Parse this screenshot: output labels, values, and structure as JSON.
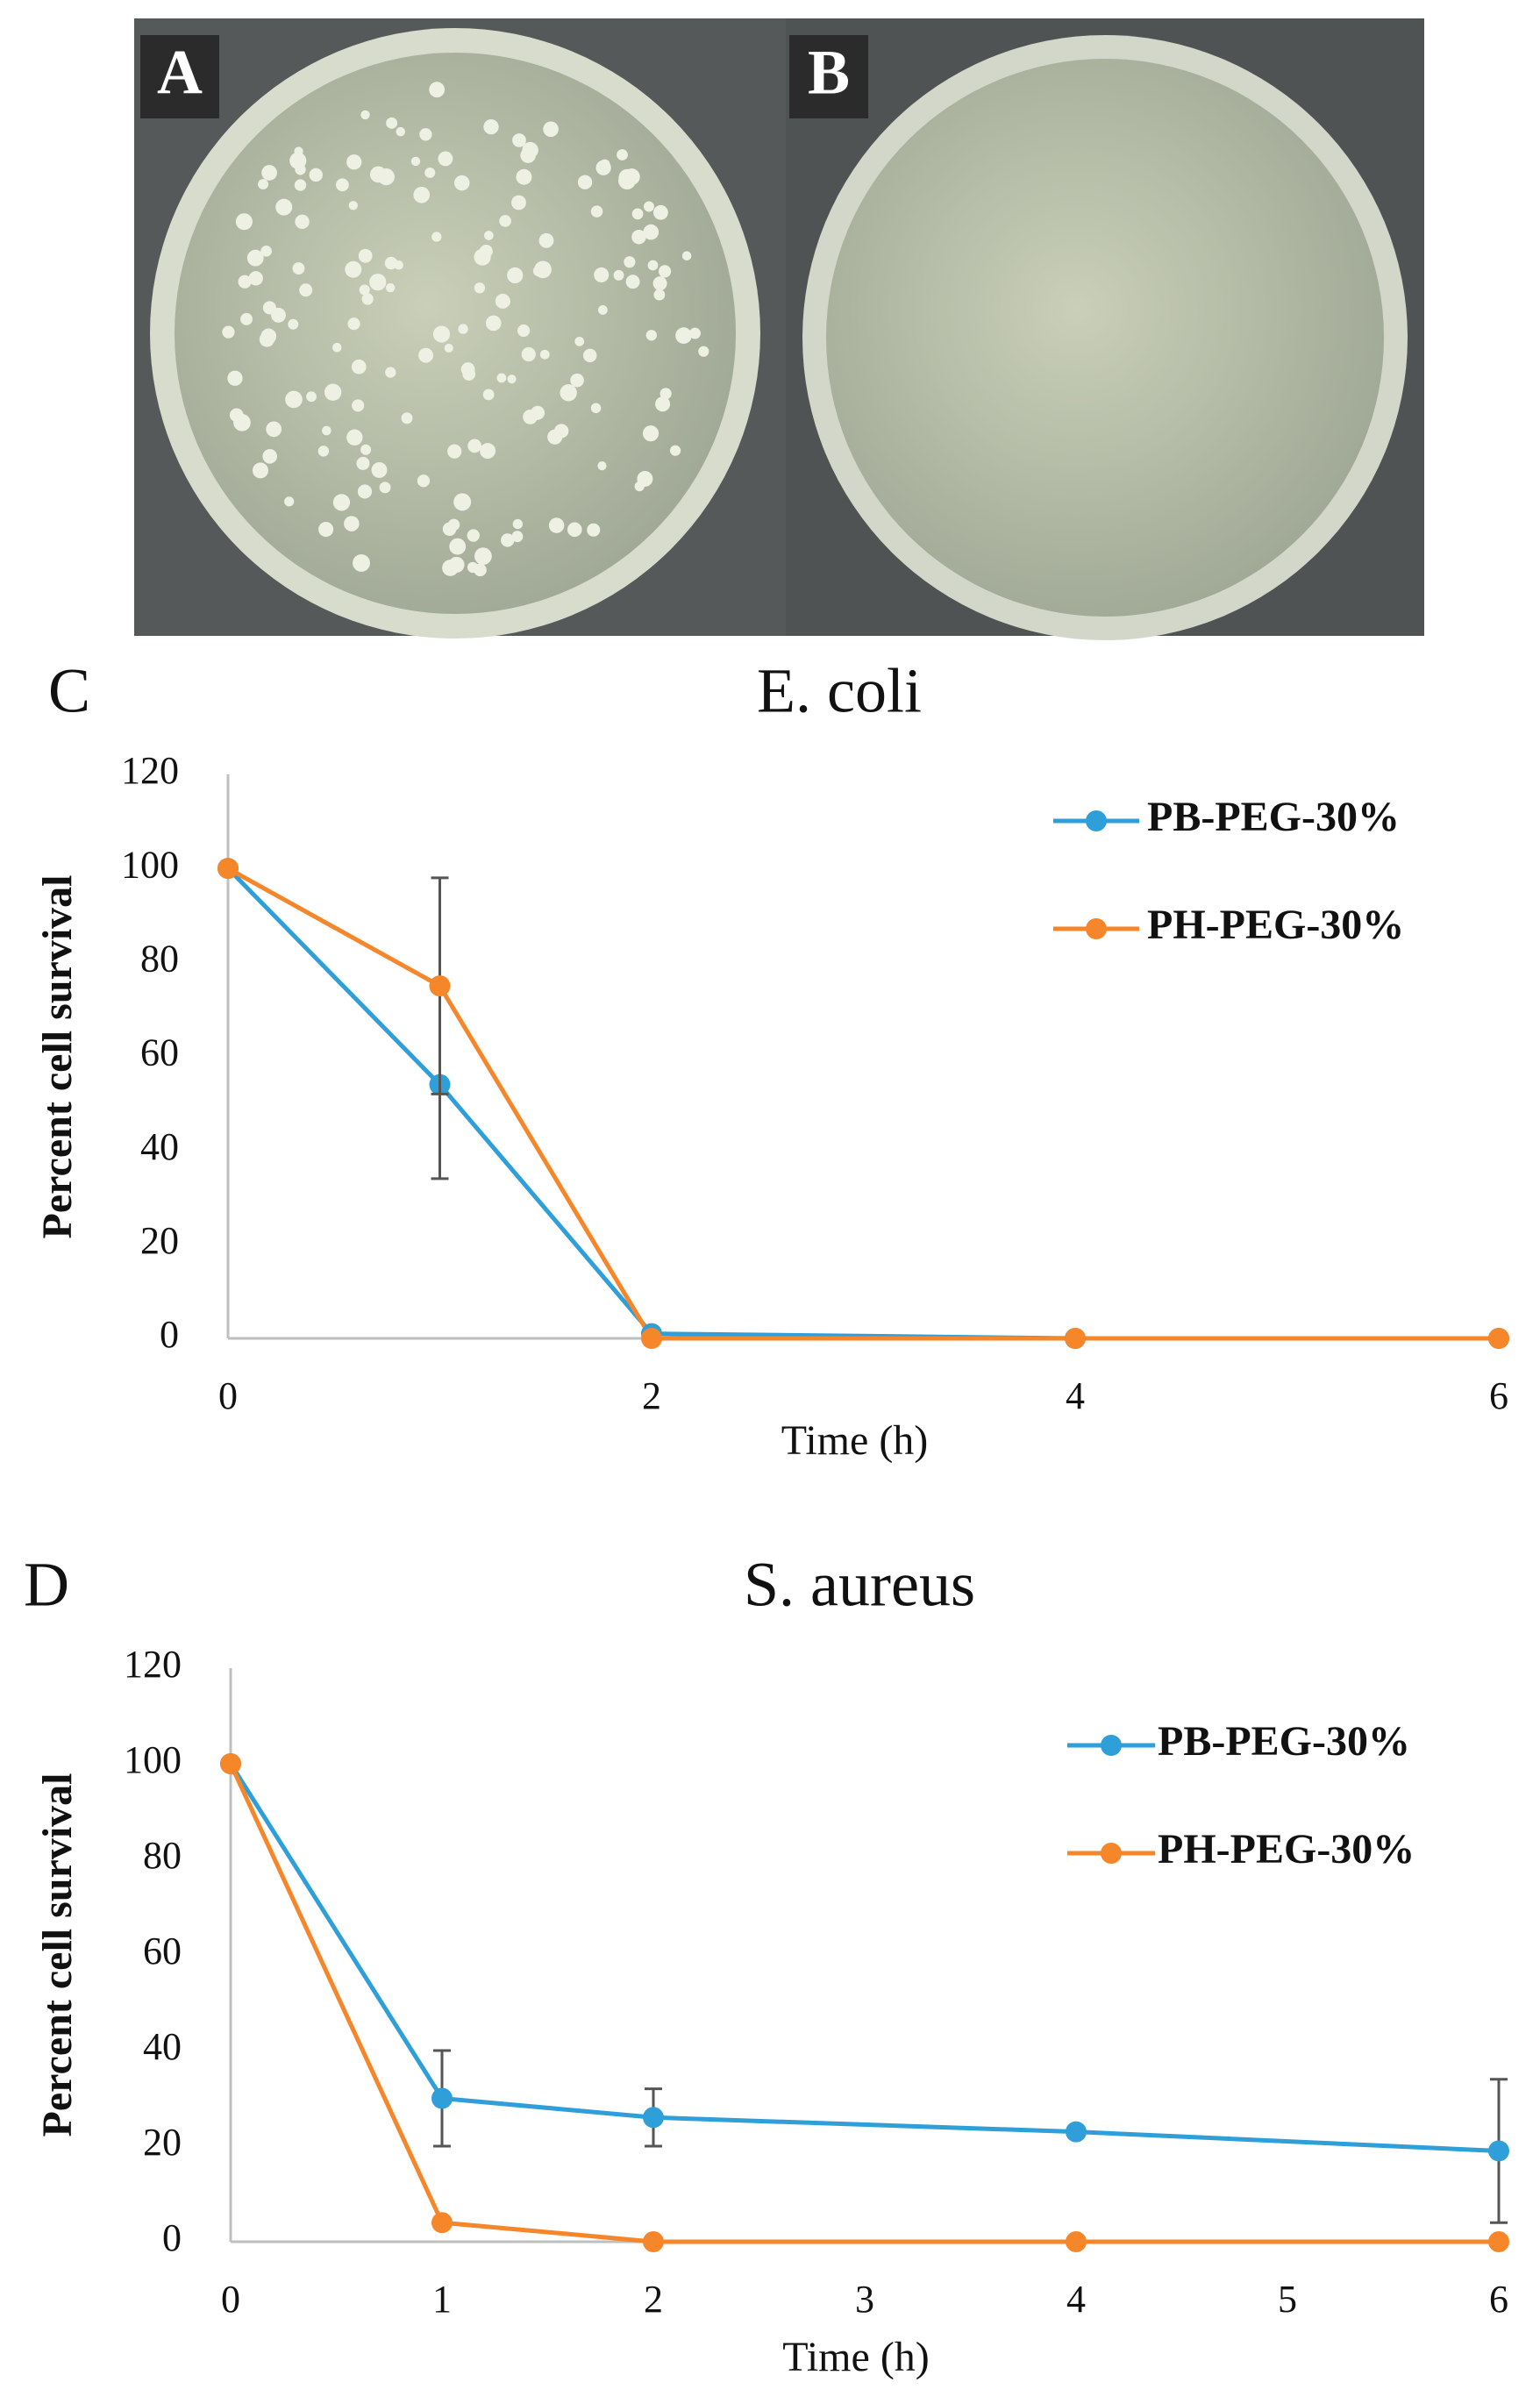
{
  "photo_labels": [
    "A",
    "B"
  ],
  "chart_data": [
    {
      "type": "line",
      "panel_label": "C",
      "title": "E. coli",
      "x_label": "Time (h)",
      "y_label": "Percent cell survival",
      "x": [
        0,
        1,
        2,
        4,
        6
      ],
      "xlim": [
        0,
        6
      ],
      "xticks": [
        0,
        2,
        4,
        6
      ],
      "ylim": [
        0,
        120
      ],
      "yticks": [
        0,
        20,
        40,
        60,
        80,
        100,
        120
      ],
      "grid": false,
      "legend": "upper right",
      "series": [
        {
          "name": "PB-PEG-30%",
          "color": "#2e9fd8",
          "values": [
            100,
            54,
            1,
            0,
            0
          ],
          "errors": [
            null,
            20,
            null,
            null,
            null
          ]
        },
        {
          "name": "PH-PEG-30%",
          "color": "#f5862a",
          "values": [
            100,
            75,
            0,
            0,
            0
          ],
          "errors": [
            null,
            23,
            null,
            null,
            null
          ]
        }
      ]
    },
    {
      "type": "line",
      "panel_label": "D",
      "title": "S. aureus",
      "x_label": "Time (h)",
      "y_label": "Percent cell survival",
      "x": [
        0,
        1,
        2,
        4,
        6
      ],
      "xlim": [
        0,
        6
      ],
      "xticks": [
        0,
        1,
        2,
        3,
        4,
        5,
        6
      ],
      "ylim": [
        0,
        120
      ],
      "yticks": [
        0,
        20,
        40,
        60,
        80,
        100,
        120
      ],
      "grid": false,
      "legend": "upper right",
      "series": [
        {
          "name": "PB-PEG-30%",
          "color": "#2e9fd8",
          "values": [
            100,
            30,
            26,
            23,
            19
          ],
          "errors": [
            null,
            10,
            6,
            null,
            15
          ]
        },
        {
          "name": "PH-PEG-30%",
          "color": "#f5862a",
          "values": [
            100,
            4,
            0,
            0,
            0
          ],
          "errors": [
            null,
            null,
            null,
            null,
            null
          ]
        }
      ]
    }
  ]
}
